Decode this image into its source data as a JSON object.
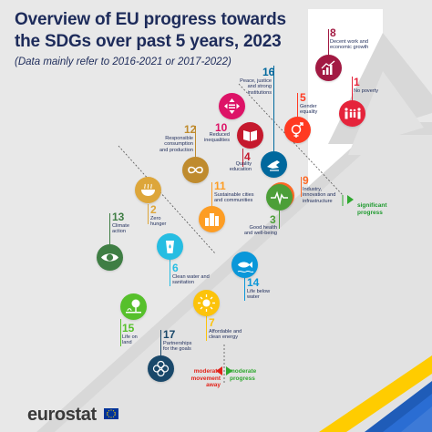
{
  "title_line1": "Overview of EU progress towards",
  "title_line2": "the SDGs over past 5 years, 2023",
  "subtitle": "(Data mainly refer to 2016-2021 or 2017-2022)",
  "legend": {
    "significant_progress": "significant\nprogress",
    "moderate_progress": "moderate\nprogress",
    "moderate_movement_away": "moderate\nmovement\naway"
  },
  "goals": [
    {
      "id": "sdg-8",
      "number": "8",
      "name": "Decent work and\neconomic growth",
      "color": "#a21942",
      "icon": "growth-chart-icon"
    },
    {
      "id": "sdg-1",
      "number": "1",
      "name": "No poverty",
      "color": "#e5243b",
      "icon": "family-icon"
    },
    {
      "id": "sdg-16",
      "number": "16",
      "name": "Peace, justice\nand strong\ninstitutions",
      "color": "#00689d",
      "icon": "dove-icon"
    },
    {
      "id": "sdg-5",
      "number": "5",
      "name": "Gender\nequality",
      "color": "#ff3a21",
      "icon": "gender-symbol-icon"
    },
    {
      "id": "sdg-10",
      "number": "10",
      "name": "Reduced\ninequalities",
      "color": "#dd1367",
      "icon": "inequality-arrows-icon"
    },
    {
      "id": "sdg-12",
      "number": "12",
      "name": "Responsible\nconsumption\nand production",
      "color": "#bf8b2e",
      "icon": "infinity-icon"
    },
    {
      "id": "sdg-4",
      "number": "4",
      "name": "Quality\neducation",
      "color": "#c5192d",
      "icon": "book-icon"
    },
    {
      "id": "sdg-9",
      "number": "9",
      "name": "Industry,\ninnovation and\ninfrastructure",
      "color": "#fd6925",
      "icon": "cubes-icon"
    },
    {
      "id": "sdg-2",
      "number": "2",
      "name": "Zero\nhunger",
      "color": "#dda63a",
      "icon": "bowl-icon"
    },
    {
      "id": "sdg-11",
      "number": "11",
      "name": "Sustainable cities\nand communities",
      "color": "#fd9d24",
      "icon": "city-icon"
    },
    {
      "id": "sdg-3",
      "number": "3",
      "name": "Good health\nand well-being",
      "color": "#4c9f38",
      "icon": "heartbeat-icon"
    },
    {
      "id": "sdg-13",
      "number": "13",
      "name": "Climate\naction",
      "color": "#3f7e44",
      "icon": "eye-globe-icon"
    },
    {
      "id": "sdg-6",
      "number": "6",
      "name": "Clean water and\nsanitation",
      "color": "#26bde2",
      "icon": "water-glass-icon"
    },
    {
      "id": "sdg-14",
      "number": "14",
      "name": "Life below\nwater",
      "color": "#0a97d9",
      "icon": "fish-icon"
    },
    {
      "id": "sdg-15",
      "number": "15",
      "name": "Life on\nland",
      "color": "#56c02b",
      "icon": "tree-icon"
    },
    {
      "id": "sdg-7",
      "number": "7",
      "name": "Affordable and\nclean energy",
      "color": "#fcc30b",
      "icon": "sun-power-icon"
    },
    {
      "id": "sdg-17",
      "number": "17",
      "name": "Partnerships\nfor the goals",
      "color": "#19486a",
      "icon": "partnership-flower-icon"
    }
  ],
  "colors": {
    "title": "#1d2b5a",
    "arrow_green": "#2fa82f",
    "arrow_red": "#e2231a",
    "significant_green": "#1e9a2e",
    "eu_blue": "#003399",
    "eu_yellow": "#ffcc00"
  },
  "footer": {
    "logo_text": "eurostat"
  }
}
